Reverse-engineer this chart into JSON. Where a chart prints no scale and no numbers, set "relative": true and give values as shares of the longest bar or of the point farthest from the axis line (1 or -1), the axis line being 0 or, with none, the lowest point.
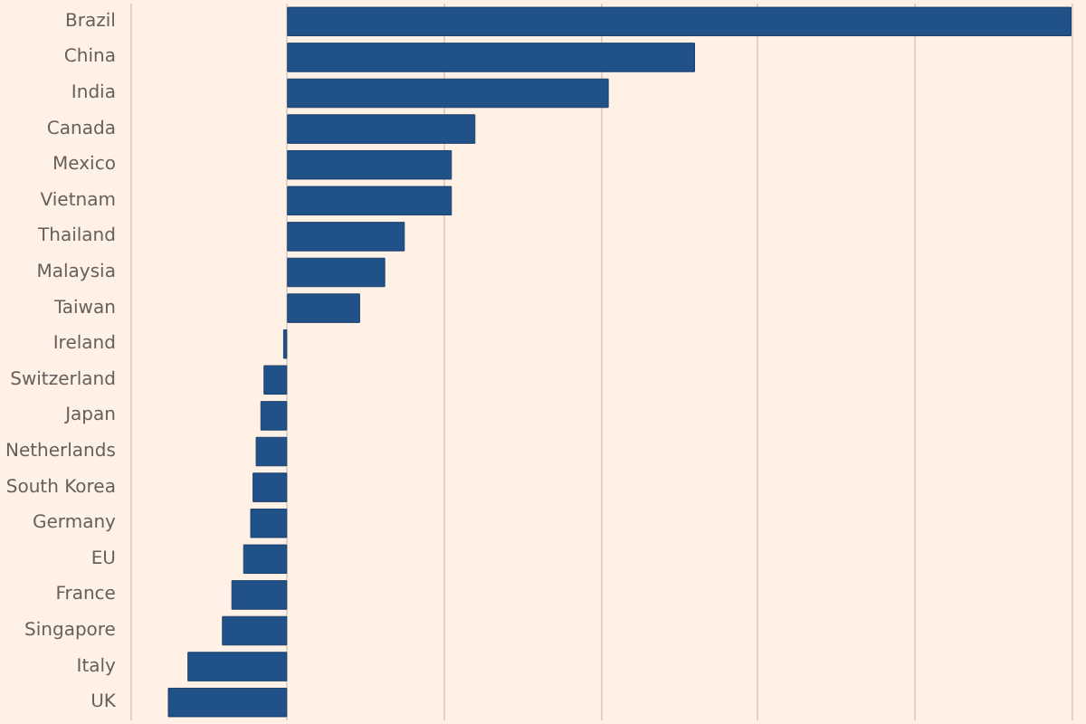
{
  "chart_data": {
    "type": "bar",
    "orientation": "horizontal",
    "relative": true,
    "grid": "x",
    "color": "#205189",
    "categories": [
      "Brazil",
      "China",
      "India",
      "Canada",
      "Mexico",
      "Vietnam",
      "Thailand",
      "Malaysia",
      "Taiwan",
      "Ireland",
      "Switzerland",
      "Japan",
      "Netherlands",
      "South Korea",
      "Germany",
      "EU",
      "France",
      "Singapore",
      "Italy",
      "UK"
    ],
    "values": [
      1,
      0.52,
      0.41,
      0.24,
      0.21,
      0.21,
      0.15,
      0.125,
      0.093,
      -0.005,
      -0.03,
      -0.034,
      -0.04,
      -0.044,
      -0.047,
      -0.056,
      -0.071,
      -0.083,
      -0.127,
      -0.152
    ]
  }
}
